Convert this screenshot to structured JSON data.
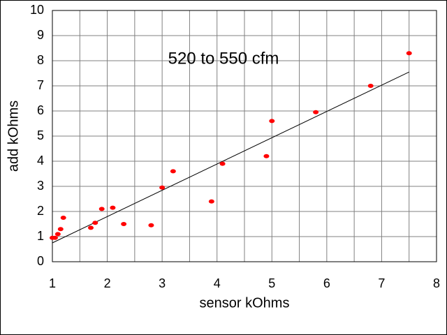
{
  "chart_data": {
    "type": "scatter",
    "annotation": "520 to 550 cfm",
    "xlabel": "sensor kOhms",
    "ylabel": "add kOhms",
    "x": [
      1.0,
      1.05,
      1.1,
      1.15,
      1.2,
      1.7,
      1.78,
      1.9,
      2.1,
      2.3,
      2.8,
      3.0,
      3.2,
      3.9,
      4.1,
      4.9,
      5.0,
      5.8,
      6.8,
      7.5
    ],
    "values": [
      0.95,
      0.95,
      1.1,
      1.3,
      1.75,
      1.35,
      1.55,
      2.1,
      2.15,
      1.5,
      1.45,
      2.95,
      3.6,
      2.4,
      3.9,
      4.2,
      5.6,
      5.95,
      7.0,
      8.3
    ],
    "color": "#ff0000",
    "trendline": {
      "x": [
        1,
        7.5
      ],
      "y": [
        0.75,
        7.55
      ],
      "color": "#000000"
    },
    "xlim": [
      1,
      8
    ],
    "ylim": [
      0,
      10
    ],
    "xticks": [
      1,
      2,
      3,
      4,
      5,
      6,
      7,
      8
    ],
    "yticks": [
      0,
      1,
      2,
      3,
      4,
      5,
      6,
      7,
      8,
      9,
      10
    ],
    "x_minor_grid": [
      1.5,
      2.5,
      3.5,
      4.5,
      5.5,
      6.5,
      7.5
    ],
    "grid": true
  }
}
